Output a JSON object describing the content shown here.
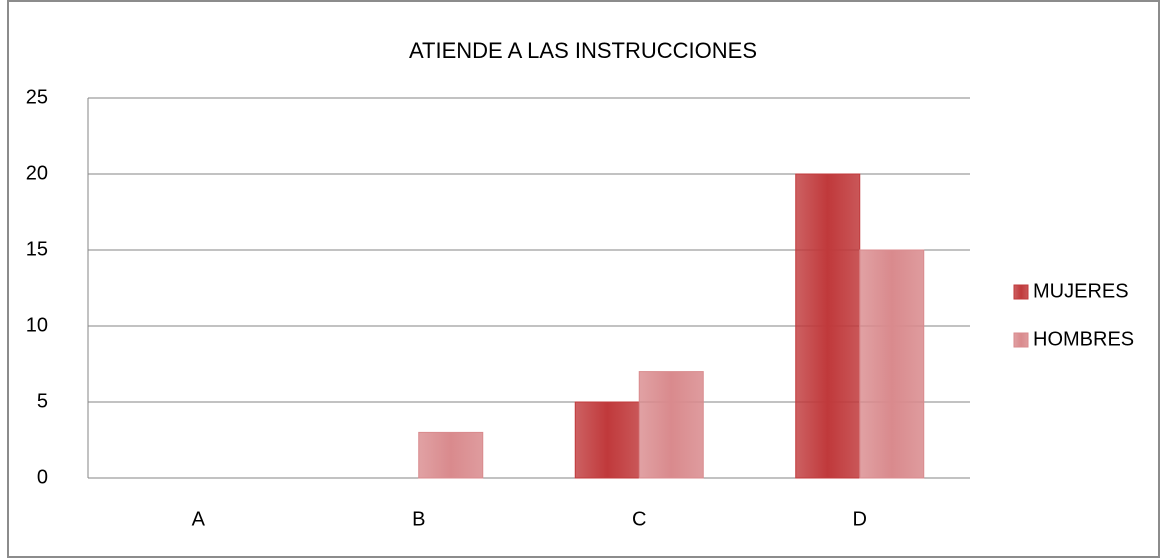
{
  "chart_data": {
    "type": "bar",
    "title": "ATIENDE A LAS INSTRUCCIONES",
    "categories": [
      "A",
      "B",
      "C",
      "D"
    ],
    "series": [
      {
        "name": "MUJERES",
        "color": "#c0393b",
        "values": [
          0,
          0,
          5,
          20
        ]
      },
      {
        "name": "HOMBRES",
        "color": "#d98a8d",
        "values": [
          0,
          3,
          7,
          15
        ]
      }
    ],
    "ylim": [
      0,
      25
    ],
    "yticks": [
      0,
      5,
      10,
      15,
      20,
      25
    ],
    "grid": true,
    "legend": "right"
  }
}
